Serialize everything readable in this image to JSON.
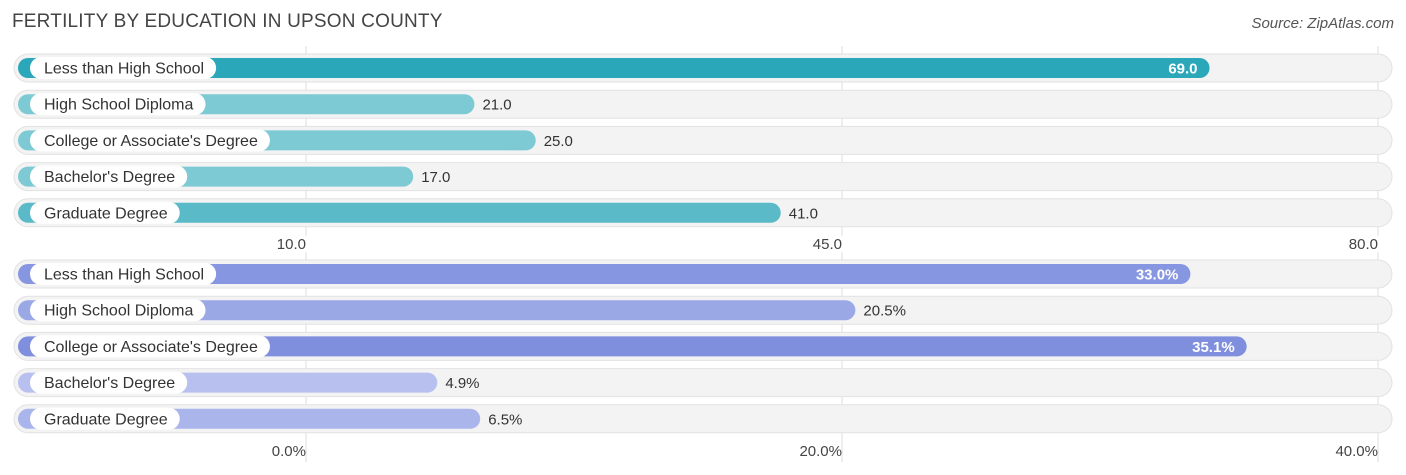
{
  "title": "FERTILITY BY EDUCATION IN UPSON COUNTY",
  "source": "Source: ZipAtlas.com",
  "chart_data": [
    {
      "type": "bar",
      "orientation": "horizontal",
      "categories": [
        "Less than High School",
        "High School Diploma",
        "College or Associate's Degree",
        "Bachelor's Degree",
        "Graduate Degree"
      ],
      "values": [
        69.0,
        21.0,
        25.0,
        17.0,
        41.0
      ],
      "value_labels": [
        "69.0",
        "21.0",
        "25.0",
        "17.0",
        "41.0"
      ],
      "xlim": [
        10.0,
        80.0
      ],
      "ticks": [
        10.0,
        45.0,
        80.0
      ],
      "tick_labels": [
        "10.0",
        "45.0",
        "80.0"
      ],
      "colors": [
        "#2aa7b8",
        "#7ecad4",
        "#7ecad4",
        "#7ecad4",
        "#5bbac7"
      ],
      "grid": true
    },
    {
      "type": "bar",
      "orientation": "horizontal",
      "categories": [
        "Less than High School",
        "High School Diploma",
        "College or Associate's Degree",
        "Bachelor's Degree",
        "Graduate Degree"
      ],
      "values": [
        33.0,
        20.5,
        35.1,
        4.9,
        6.5
      ],
      "value_labels": [
        "33.0%",
        "20.5%",
        "35.1%",
        "4.9%",
        "6.5%"
      ],
      "xlim": [
        0.0,
        40.0
      ],
      "ticks": [
        0.0,
        20.0,
        40.0
      ],
      "tick_labels": [
        "0.0%",
        "20.0%",
        "40.0%"
      ],
      "colors": [
        "#8796e0",
        "#9ba8e6",
        "#7f8fdd",
        "#b7c0ef",
        "#aab5ec"
      ],
      "grid": true
    }
  ]
}
